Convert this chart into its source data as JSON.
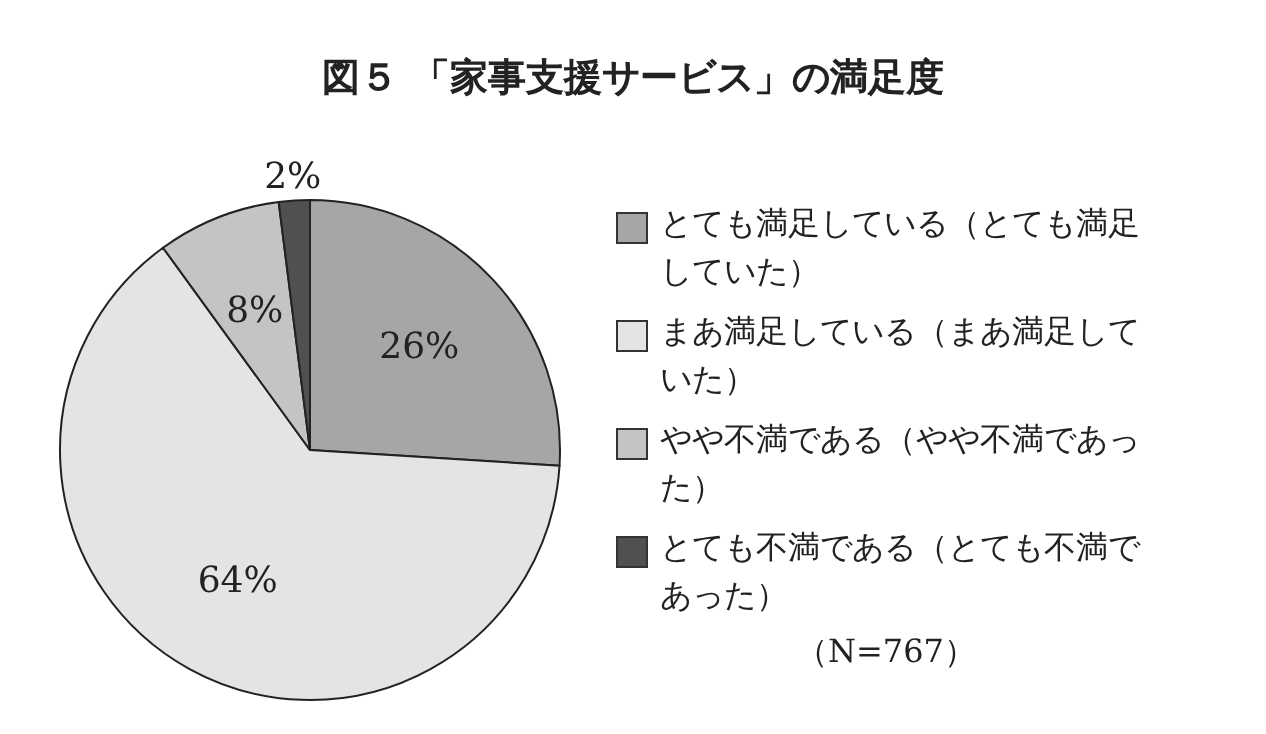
{
  "chart_data": {
    "type": "pie",
    "title": "図５ 「家事支援サービス」の満足度",
    "categories": [
      "とても満足している（とても満足していた）",
      "まあ満足している（まあ満足していた）",
      "やや不満である（やや不満であった）",
      "とても不満である（とても不満であった）"
    ],
    "values": [
      26,
      64,
      8,
      2
    ],
    "value_labels": [
      "26%",
      "64%",
      "8%",
      "2%"
    ],
    "colors": [
      "#a6a6a6",
      "#e4e4e4",
      "#c4c4c4",
      "#505050"
    ],
    "legend": "right",
    "annotations": [
      "（N=767）"
    ]
  }
}
